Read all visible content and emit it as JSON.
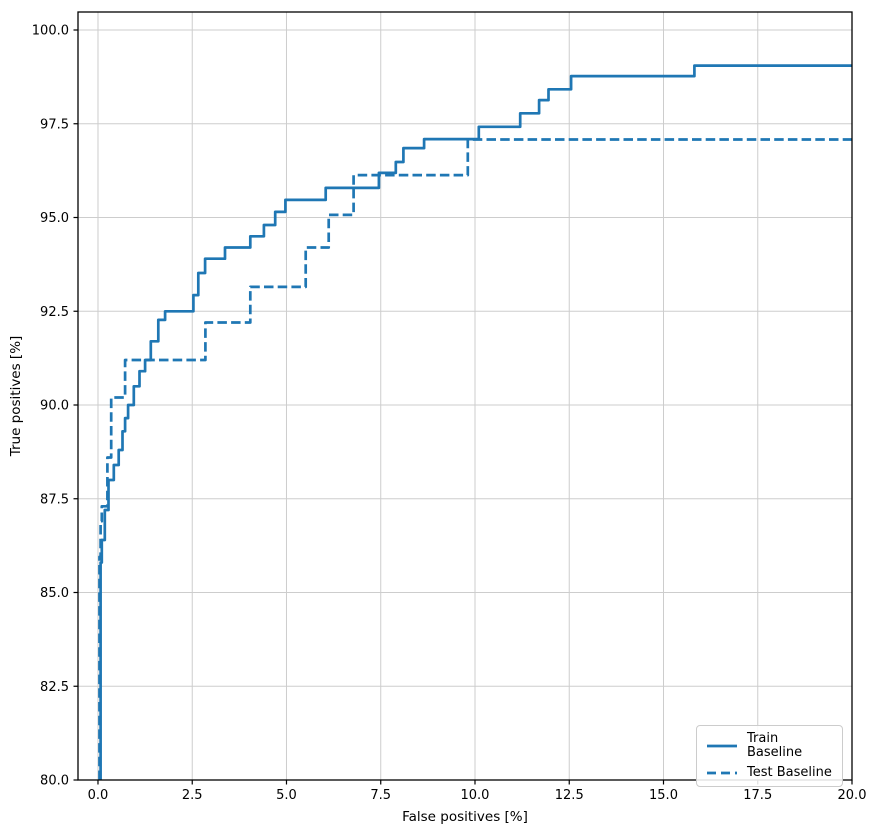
{
  "chart_data": {
    "type": "line",
    "subtype": "step-post",
    "title": "",
    "xlabel": "False positives [%]",
    "ylabel": "True positives [%]",
    "xlim": [
      -0.53,
      20.0
    ],
    "ylim": [
      80.0,
      100.48
    ],
    "grid": true,
    "legend_position": "lower right",
    "line_color": "#1f77b4",
    "grid_color": "#cdcdcd",
    "spine_color": "#000000",
    "xticks": [
      0.0,
      2.5,
      5.0,
      7.5,
      10.0,
      12.5,
      15.0,
      17.5,
      20.0
    ],
    "xtick_labels": [
      "0.0",
      "2.5",
      "5.0",
      "7.5",
      "10.0",
      "12.5",
      "15.0",
      "17.5",
      "20.0"
    ],
    "yticks": [
      80.0,
      82.5,
      85.0,
      87.5,
      90.0,
      92.5,
      95.0,
      97.5,
      100.0
    ],
    "ytick_labels": [
      "80.0",
      "82.5",
      "85.0",
      "87.5",
      "90.0",
      "92.5",
      "95.0",
      "97.5",
      "100.0"
    ],
    "series": [
      {
        "name": "Train Baseline",
        "style": "solid",
        "points": [
          [
            0.07,
            80.0
          ],
          [
            0.07,
            85.8
          ],
          [
            0.1,
            85.8
          ],
          [
            0.1,
            86.4
          ],
          [
            0.18,
            86.4
          ],
          [
            0.18,
            87.2
          ],
          [
            0.28,
            87.2
          ],
          [
            0.28,
            88.0
          ],
          [
            0.42,
            88.0
          ],
          [
            0.42,
            88.4
          ],
          [
            0.55,
            88.4
          ],
          [
            0.55,
            88.8
          ],
          [
            0.65,
            88.8
          ],
          [
            0.65,
            89.3
          ],
          [
            0.72,
            89.3
          ],
          [
            0.72,
            89.65
          ],
          [
            0.8,
            89.65
          ],
          [
            0.8,
            90.0
          ],
          [
            0.95,
            90.0
          ],
          [
            0.95,
            90.5
          ],
          [
            1.1,
            90.5
          ],
          [
            1.1,
            90.9
          ],
          [
            1.25,
            90.9
          ],
          [
            1.25,
            91.2
          ],
          [
            1.4,
            91.2
          ],
          [
            1.4,
            91.7
          ],
          [
            1.6,
            91.7
          ],
          [
            1.6,
            92.27
          ],
          [
            1.78,
            92.27
          ],
          [
            1.78,
            92.5
          ],
          [
            2.53,
            92.5
          ],
          [
            2.53,
            92.93
          ],
          [
            2.66,
            92.93
          ],
          [
            2.66,
            93.52
          ],
          [
            2.84,
            93.52
          ],
          [
            2.84,
            93.9
          ],
          [
            3.37,
            93.9
          ],
          [
            3.37,
            94.2
          ],
          [
            4.04,
            94.2
          ],
          [
            4.04,
            94.5
          ],
          [
            4.4,
            94.5
          ],
          [
            4.4,
            94.8
          ],
          [
            4.7,
            94.8
          ],
          [
            4.7,
            95.15
          ],
          [
            4.97,
            95.15
          ],
          [
            4.97,
            95.47
          ],
          [
            6.04,
            95.47
          ],
          [
            6.04,
            95.79
          ],
          [
            7.45,
            95.79
          ],
          [
            7.45,
            96.19
          ],
          [
            7.9,
            96.19
          ],
          [
            7.9,
            96.48
          ],
          [
            8.1,
            96.48
          ],
          [
            8.1,
            96.85
          ],
          [
            8.65,
            96.85
          ],
          [
            8.65,
            97.09
          ],
          [
            10.1,
            97.09
          ],
          [
            10.1,
            97.42
          ],
          [
            11.2,
            97.42
          ],
          [
            11.2,
            97.78
          ],
          [
            11.7,
            97.78
          ],
          [
            11.7,
            98.13
          ],
          [
            11.95,
            98.13
          ],
          [
            11.95,
            98.42
          ],
          [
            12.55,
            98.42
          ],
          [
            12.55,
            98.77
          ],
          [
            15.82,
            98.77
          ],
          [
            15.82,
            99.05
          ],
          [
            20.0,
            99.05
          ]
        ]
      },
      {
        "name": "Test Baseline",
        "style": "dashed",
        "points": [
          [
            0.04,
            80.0
          ],
          [
            0.04,
            85.95
          ],
          [
            0.07,
            85.95
          ],
          [
            0.07,
            86.9
          ],
          [
            0.1,
            86.9
          ],
          [
            0.1,
            87.3
          ],
          [
            0.25,
            87.3
          ],
          [
            0.25,
            88.6
          ],
          [
            0.35,
            88.6
          ],
          [
            0.35,
            90.2
          ],
          [
            0.72,
            90.2
          ],
          [
            0.72,
            91.2
          ],
          [
            2.85,
            91.2
          ],
          [
            2.85,
            92.2
          ],
          [
            4.04,
            92.2
          ],
          [
            4.04,
            93.15
          ],
          [
            5.51,
            93.15
          ],
          [
            5.51,
            94.2
          ],
          [
            6.12,
            94.2
          ],
          [
            6.12,
            95.07
          ],
          [
            6.78,
            95.07
          ],
          [
            6.78,
            96.13
          ],
          [
            9.81,
            96.13
          ],
          [
            9.81,
            97.08
          ],
          [
            20.0,
            97.08
          ]
        ]
      }
    ]
  }
}
